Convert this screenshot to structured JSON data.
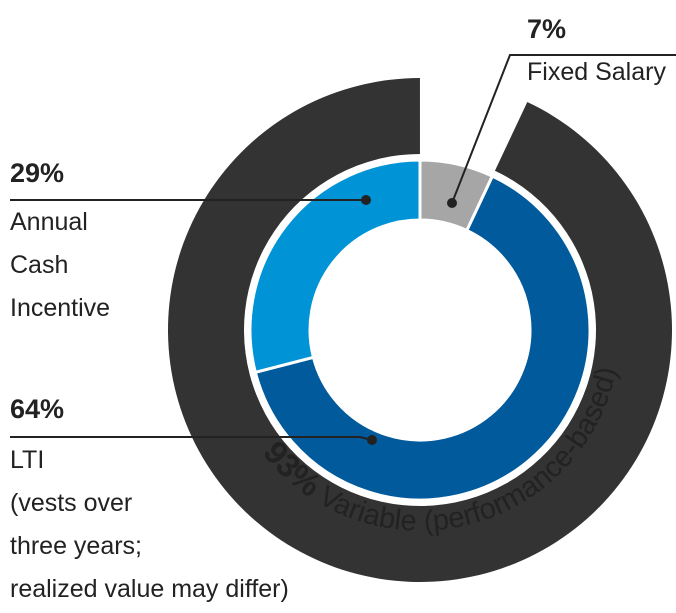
{
  "chart_data": {
    "type": "donut",
    "series": [
      {
        "name": "Fixed Salary",
        "value": 7,
        "value_label": "7%",
        "color": "#a6a6a6",
        "label_lines": [
          "Fixed Salary"
        ]
      },
      {
        "name": "LTI",
        "value": 64,
        "value_label": "64%",
        "color": "#005a9c",
        "label_lines": [
          "LTI",
          "(vests over",
          "three years;",
          "realized value may differ)"
        ]
      },
      {
        "name": "Annual Cash Incentive",
        "value": 29,
        "value_label": "29%",
        "color": "#0093d6",
        "label_lines": [
          "Annual",
          "Cash",
          "Incentive"
        ]
      }
    ],
    "outer_ring": {
      "value": 93,
      "value_label": "93%",
      "text": "Variable (performance-based)",
      "color": "#333333"
    },
    "label_color": "#005a9c"
  }
}
